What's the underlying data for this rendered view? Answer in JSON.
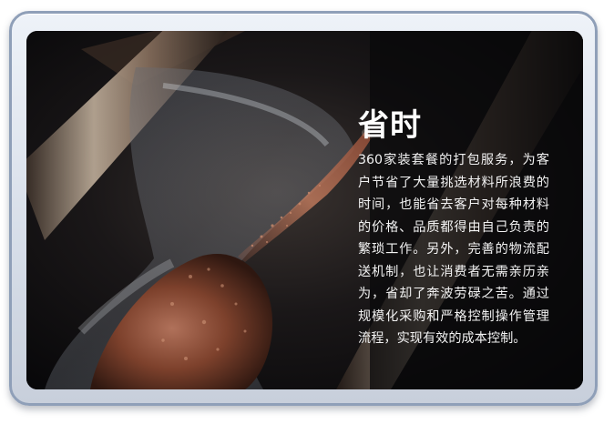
{
  "card": {
    "title": "省时",
    "description": "360家装套餐的打包服务，为客户节省了大量挑选材料所浪费的时间，也能省去客户对每种材料的价格、品质都得由自己负责的繁琐工作。另外，完善的物流配送机制，也让消费者无需亲历亲为，省却了奔波劳碌之苦。通过规模化采购和严格控制操作管理流程，实现有效的成本控制。",
    "image": {
      "subject": "hourglass-with-falling-sand"
    }
  },
  "colors": {
    "frame_border": "#8f9fb8",
    "frame_fill": "#dde3ec",
    "text": "#ffffff",
    "sand": "#8a4a32"
  }
}
